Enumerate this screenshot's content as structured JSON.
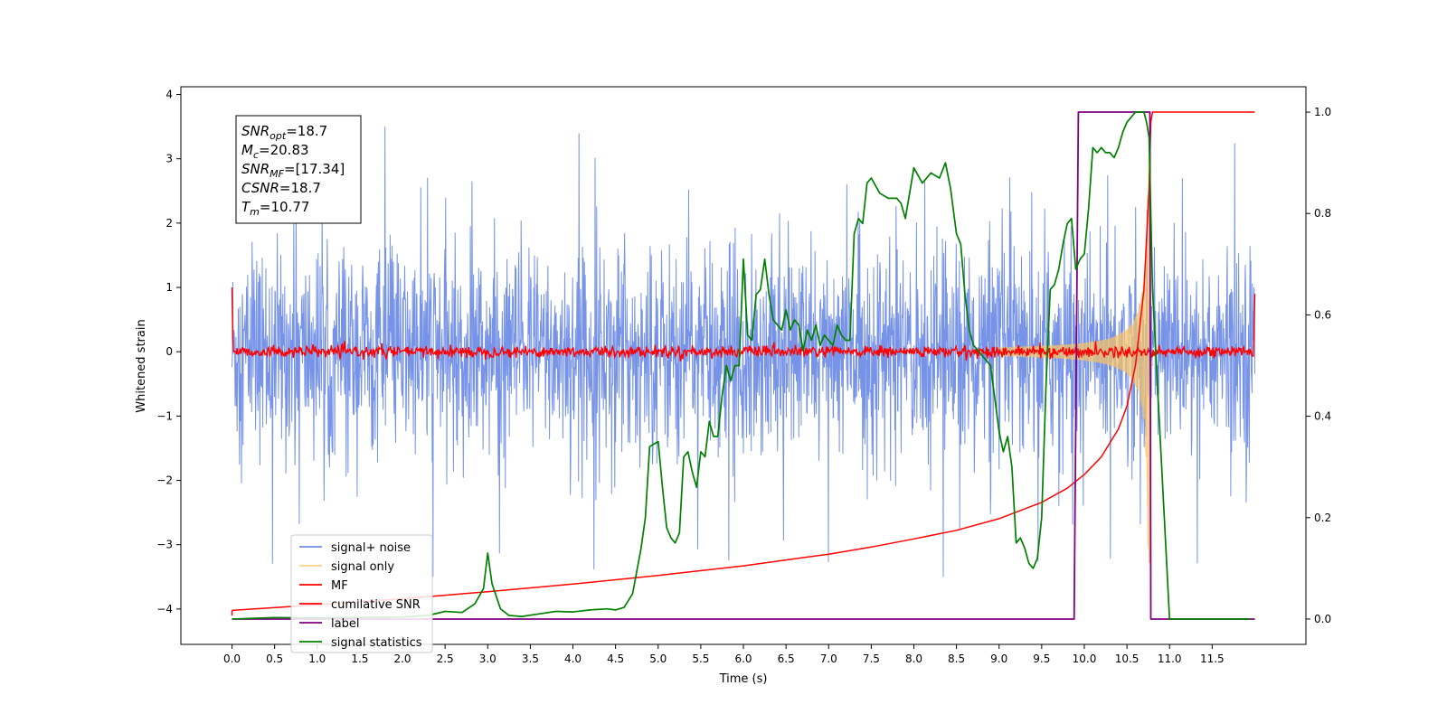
{
  "chart_data": {
    "type": "line",
    "xlabel": "Time (s)",
    "ylabel": "Whitened strain",
    "xlim": [
      -0.6,
      12.6
    ],
    "ylim": [
      -4.55,
      4.12
    ],
    "ylim_right": [
      -0.05,
      1.05
    ],
    "x_ticks": [
      "0.0",
      "0.5",
      "1.0",
      "1.5",
      "2.0",
      "2.5",
      "3.0",
      "3.5",
      "4.0",
      "4.5",
      "5.0",
      "5.5",
      "6.0",
      "6.5",
      "7.0",
      "7.5",
      "8.0",
      "8.5",
      "9.0",
      "9.5",
      "10.0",
      "10.5",
      "11.0",
      "11.5"
    ],
    "y_ticks_left": [
      "4",
      "3",
      "2",
      "1",
      "0",
      "−1",
      "−2",
      "−3",
      "−4"
    ],
    "y_ticks_right": [
      "1.0",
      "0.8",
      "0.6",
      "0.4",
      "0.2",
      "0.0"
    ],
    "grid": false,
    "legend_position": "lower-left",
    "info_box": {
      "lines": [
        {
          "sym": "SNR",
          "sub": "opt",
          "val": "=18.7"
        },
        {
          "sym": "M",
          "sub": "c",
          "val": "=20.83"
        },
        {
          "sym": "SNR",
          "sub": "MF",
          "val": "=[17.34]"
        },
        {
          "sym": "CSNR",
          "sub": "",
          "val": "=18.7"
        },
        {
          "sym": "T",
          "sub": "m",
          "val": "=10.77"
        }
      ]
    },
    "series": [
      {
        "name": "signal+ noise",
        "color": "#6f8de6",
        "axis": "left",
        "kind": "noise",
        "x_range": [
          0,
          12
        ],
        "typical_amplitude": 1.5,
        "offset": 0.0,
        "peak_amplitude": 3.5
      },
      {
        "name": "signal only",
        "color": "#f5c26b",
        "axis": "left",
        "kind": "chirp",
        "merger_time": 10.77,
        "peak_amplitude": 3.3
      },
      {
        "name": "MF",
        "color": "#ff0000",
        "axis": "left",
        "kind": "mf",
        "x_range": [
          0,
          12
        ],
        "level": 0.0,
        "noise_amplitude": 0.08,
        "edge_value_start": 1.0,
        "edge_value_end": 0.9
      },
      {
        "name": "cumilative SNR",
        "color": "#ff0000",
        "axis": "right",
        "x": [
          0.0,
          1.0,
          2.0,
          3.0,
          4.0,
          5.0,
          6.0,
          7.0,
          7.5,
          8.0,
          8.5,
          9.0,
          9.5,
          9.8,
          10.0,
          10.2,
          10.4,
          10.5,
          10.6,
          10.7,
          10.76,
          10.78,
          10.8,
          12.0
        ],
        "y": [
          0.017,
          0.028,
          0.04,
          0.054,
          0.069,
          0.086,
          0.105,
          0.128,
          0.142,
          0.158,
          0.175,
          0.198,
          0.23,
          0.258,
          0.285,
          0.32,
          0.375,
          0.42,
          0.5,
          0.65,
          0.85,
          0.98,
          1.0,
          1.0
        ]
      },
      {
        "name": "label",
        "color": "#800080",
        "axis": "right",
        "x": [
          0.0,
          9.88,
          9.93,
          10.77,
          10.78,
          12.0
        ],
        "y": [
          0.0,
          0.0,
          1.0,
          1.0,
          0.0,
          0.0
        ]
      },
      {
        "name": "signal statistics",
        "color": "#008000",
        "axis": "right",
        "x": [
          0.0,
          0.5,
          1.0,
          1.5,
          2.0,
          2.3,
          2.5,
          2.7,
          2.85,
          2.95,
          3.0,
          3.05,
          3.15,
          3.25,
          3.4,
          3.6,
          3.8,
          4.0,
          4.2,
          4.4,
          4.5,
          4.6,
          4.7,
          4.8,
          4.85,
          4.9,
          4.95,
          5.0,
          5.05,
          5.1,
          5.15,
          5.2,
          5.25,
          5.3,
          5.35,
          5.4,
          5.45,
          5.5,
          5.55,
          5.6,
          5.65,
          5.7,
          5.75,
          5.8,
          5.85,
          5.9,
          5.95,
          6.0,
          6.05,
          6.1,
          6.15,
          6.2,
          6.25,
          6.3,
          6.35,
          6.4,
          6.45,
          6.5,
          6.55,
          6.6,
          6.65,
          6.7,
          6.75,
          6.8,
          6.85,
          6.9,
          6.95,
          7.0,
          7.05,
          7.1,
          7.15,
          7.2,
          7.25,
          7.3,
          7.35,
          7.4,
          7.45,
          7.5,
          7.6,
          7.7,
          7.8,
          7.85,
          7.9,
          8.0,
          8.1,
          8.2,
          8.3,
          8.37,
          8.43,
          8.5,
          8.55,
          8.6,
          8.65,
          8.7,
          8.8,
          8.9,
          9.0,
          9.05,
          9.1,
          9.15,
          9.2,
          9.25,
          9.3,
          9.35,
          9.4,
          9.45,
          9.5,
          9.55,
          9.6,
          9.65,
          9.7,
          9.75,
          9.8,
          9.85,
          9.9,
          9.95,
          10.0,
          10.05,
          10.1,
          10.15,
          10.2,
          10.25,
          10.3,
          10.35,
          10.4,
          10.45,
          10.5,
          10.55,
          10.6,
          10.65,
          10.7,
          10.73,
          10.76,
          10.8,
          11.0,
          11.5,
          11.95
        ],
        "y": [
          0.0,
          0.003,
          0.002,
          0.003,
          0.004,
          0.007,
          0.015,
          0.013,
          0.03,
          0.06,
          0.13,
          0.07,
          0.02,
          0.007,
          0.005,
          0.01,
          0.015,
          0.014,
          0.018,
          0.02,
          0.018,
          0.023,
          0.05,
          0.14,
          0.2,
          0.34,
          0.345,
          0.35,
          0.26,
          0.18,
          0.16,
          0.15,
          0.17,
          0.32,
          0.33,
          0.29,
          0.26,
          0.33,
          0.32,
          0.39,
          0.36,
          0.36,
          0.44,
          0.5,
          0.47,
          0.5,
          0.5,
          0.71,
          0.56,
          0.55,
          0.64,
          0.65,
          0.71,
          0.64,
          0.59,
          0.58,
          0.57,
          0.61,
          0.57,
          0.59,
          0.58,
          0.53,
          0.57,
          0.55,
          0.58,
          0.54,
          0.56,
          0.55,
          0.54,
          0.58,
          0.56,
          0.55,
          0.55,
          0.76,
          0.79,
          0.78,
          0.86,
          0.87,
          0.84,
          0.83,
          0.83,
          0.82,
          0.79,
          0.89,
          0.86,
          0.88,
          0.87,
          0.9,
          0.85,
          0.76,
          0.74,
          0.64,
          0.57,
          0.54,
          0.52,
          0.5,
          0.37,
          0.33,
          0.36,
          0.3,
          0.15,
          0.16,
          0.14,
          0.11,
          0.1,
          0.12,
          0.2,
          0.46,
          0.65,
          0.66,
          0.69,
          0.74,
          0.78,
          0.79,
          0.69,
          0.71,
          0.72,
          0.81,
          0.93,
          0.92,
          0.93,
          0.92,
          0.92,
          0.91,
          0.93,
          0.96,
          0.98,
          0.99,
          1.0,
          1.0,
          1.0,
          0.98,
          0.95,
          0.65,
          0.0,
          0.0,
          0.0
        ]
      }
    ]
  }
}
